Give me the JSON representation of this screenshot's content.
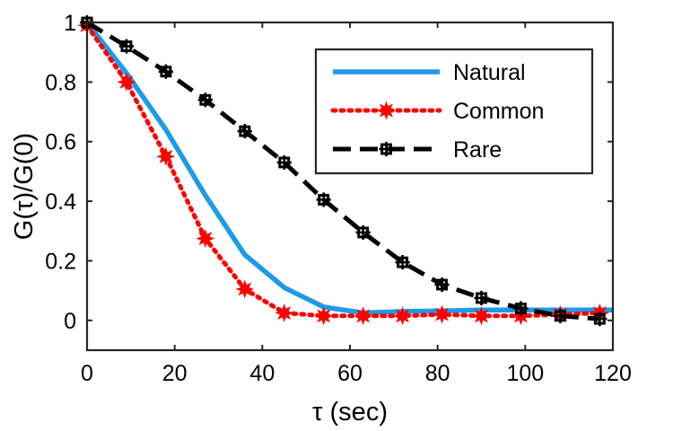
{
  "chart_data": {
    "type": "line",
    "xlabel": "τ (sec)",
    "ylabel": "G(τ)/G(0)",
    "xlim": [
      0,
      120
    ],
    "ylim": [
      -0.1,
      1
    ],
    "xticks": [
      0,
      20,
      40,
      60,
      80,
      100,
      120
    ],
    "yticks": [
      0,
      0.2,
      0.4,
      0.6,
      0.8,
      1
    ],
    "xtick_labels": [
      "0",
      "20",
      "40",
      "60",
      "80",
      "100",
      "120"
    ],
    "ytick_labels": [
      "0",
      "0.2",
      "0.4",
      "0.6",
      "0.8",
      "1"
    ],
    "grid": false,
    "legend_position": "top-right",
    "series": [
      {
        "name": "Natural",
        "color": "#1e9be6",
        "style": "solid",
        "marker": "none",
        "x": [
          0,
          9,
          18,
          27,
          36,
          45,
          54,
          63,
          72,
          81,
          90,
          99,
          108,
          117,
          120
        ],
        "y": [
          1.0,
          0.83,
          0.64,
          0.42,
          0.22,
          0.11,
          0.045,
          0.025,
          0.03,
          0.032,
          0.035,
          0.035,
          0.035,
          0.035,
          0.035
        ]
      },
      {
        "name": "Common",
        "color": "#ff0000",
        "style": "dotted",
        "marker": "star",
        "x": [
          0,
          9,
          18,
          27,
          36,
          45,
          54,
          63,
          72,
          81,
          90,
          99,
          108,
          117
        ],
        "y": [
          0.99,
          0.8,
          0.55,
          0.275,
          0.105,
          0.025,
          0.015,
          0.015,
          0.015,
          0.02,
          0.015,
          0.015,
          0.02,
          0.025
        ]
      },
      {
        "name": "Rare",
        "color": "#000000",
        "style": "dashed",
        "marker": "square",
        "x": [
          0,
          9,
          18,
          27,
          36,
          45,
          54,
          63,
          72,
          81,
          90,
          99,
          108,
          117
        ],
        "y": [
          1.0,
          0.92,
          0.835,
          0.74,
          0.635,
          0.53,
          0.405,
          0.295,
          0.195,
          0.12,
          0.075,
          0.04,
          0.015,
          0.005
        ]
      }
    ]
  }
}
